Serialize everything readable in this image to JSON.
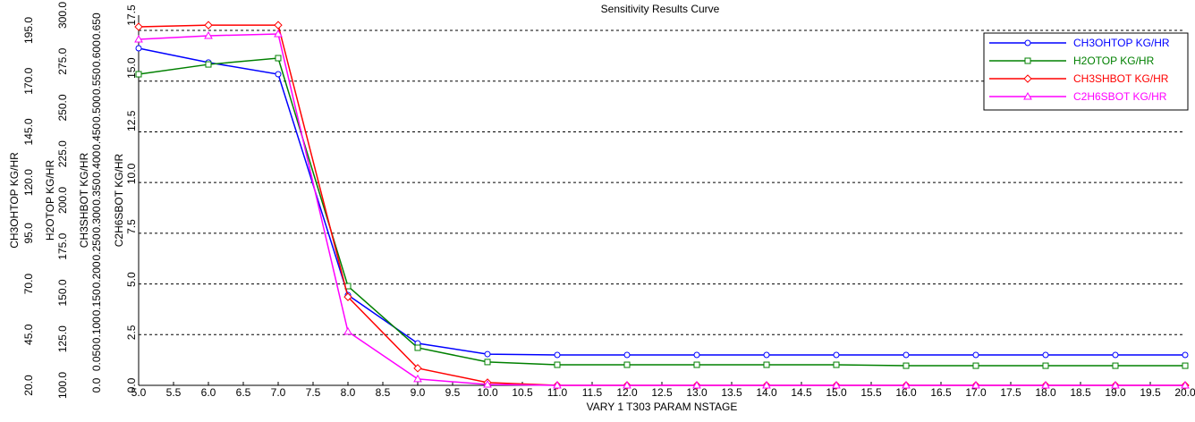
{
  "chart_data": {
    "type": "line",
    "title": "Sensitivity Results Curve",
    "x_label": "VARY   1 T303 PARAM NSTAGE",
    "x": [
      5,
      6,
      7,
      8,
      9,
      10,
      11,
      12,
      13,
      14,
      15,
      16,
      17,
      18,
      19,
      20
    ],
    "xlim": [
      5,
      20
    ],
    "xticks": [
      {
        "value": 5,
        "label": "5.0"
      },
      {
        "value": 5.5,
        "label": "5.5"
      },
      {
        "value": 6,
        "label": "6.0"
      },
      {
        "value": 6.5,
        "label": "6.5"
      },
      {
        "value": 7,
        "label": "7.0"
      },
      {
        "value": 7.5,
        "label": "7.5"
      },
      {
        "value": 8,
        "label": "8.0"
      },
      {
        "value": 8.5,
        "label": "8.5"
      },
      {
        "value": 9,
        "label": "9.0"
      },
      {
        "value": 9.5,
        "label": "9.5"
      },
      {
        "value": 10,
        "label": "10.0"
      },
      {
        "value": 10.5,
        "label": "10.5"
      },
      {
        "value": 11,
        "label": "11.0"
      },
      {
        "value": 11.5,
        "label": "11.5"
      },
      {
        "value": 12,
        "label": "12.0"
      },
      {
        "value": 12.5,
        "label": "12.5"
      },
      {
        "value": 13,
        "label": "13.0"
      },
      {
        "value": 13.5,
        "label": "13.5"
      },
      {
        "value": 14,
        "label": "14.0"
      },
      {
        "value": 14.5,
        "label": "14.5"
      },
      {
        "value": 15,
        "label": "15.0"
      },
      {
        "value": 15.5,
        "label": "15.5"
      },
      {
        "value": 16,
        "label": "16.0"
      },
      {
        "value": 16.5,
        "label": "16.5"
      },
      {
        "value": 17,
        "label": "17.0"
      },
      {
        "value": 17.5,
        "label": "17.5"
      },
      {
        "value": 18,
        "label": "18.0"
      },
      {
        "value": 18.5,
        "label": "18.5"
      },
      {
        "value": 19,
        "label": "19.0"
      },
      {
        "value": 19.5,
        "label": "19.5"
      },
      {
        "value": 20,
        "label": "20.0"
      }
    ],
    "grid": true,
    "grid_axis": 0,
    "legend": "upper right",
    "y_axes": [
      {
        "label": "CH3OHTOP KG/HR",
        "ylim": [
          20,
          202.5
        ],
        "yticks": [
          {
            "value": 20,
            "label": "20.0"
          },
          {
            "value": 45,
            "label": "45.0"
          },
          {
            "value": 70,
            "label": "70.0"
          },
          {
            "value": 95,
            "label": "95.0"
          },
          {
            "value": 120,
            "label": "120.0"
          },
          {
            "value": 145,
            "label": "145.0"
          },
          {
            "value": 170,
            "label": "170.0"
          },
          {
            "value": 195,
            "label": "195.0"
          }
        ]
      },
      {
        "label": "H2OTOP KG/HR",
        "ylim": [
          100,
          300
        ],
        "yticks": [
          {
            "value": 100,
            "label": "100.0"
          },
          {
            "value": 125,
            "label": "125.0"
          },
          {
            "value": 150,
            "label": "150.0"
          },
          {
            "value": 175,
            "label": "175.0"
          },
          {
            "value": 200,
            "label": "200.0"
          },
          {
            "value": 225,
            "label": "225.0"
          },
          {
            "value": 250,
            "label": "250.0"
          },
          {
            "value": 275,
            "label": "275.0"
          },
          {
            "value": 300,
            "label": "300.0"
          }
        ]
      },
      {
        "label": "CH3SHBOT KG/HR",
        "ylim": [
          0,
          0.67
        ],
        "yticks": [
          {
            "value": 0,
            "label": "0.0"
          },
          {
            "value": 0.05,
            "label": "0.050"
          },
          {
            "value": 0.1,
            "label": "0.100"
          },
          {
            "value": 0.15,
            "label": "0.150"
          },
          {
            "value": 0.2,
            "label": "0.200"
          },
          {
            "value": 0.25,
            "label": "0.250"
          },
          {
            "value": 0.3,
            "label": "0.300"
          },
          {
            "value": 0.35,
            "label": "0.350"
          },
          {
            "value": 0.4,
            "label": "0.400"
          },
          {
            "value": 0.45,
            "label": "0.450"
          },
          {
            "value": 0.5,
            "label": "0.500"
          },
          {
            "value": 0.55,
            "label": "0.550"
          },
          {
            "value": 0.6,
            "label": "0.600"
          },
          {
            "value": 0.65,
            "label": "0.650"
          }
        ]
      },
      {
        "label": "C2H6SBOT KG/HR",
        "ylim": [
          0,
          17.5
        ],
        "yticks": [
          {
            "value": 0,
            "label": "0.0"
          },
          2.5,
          {
            "value": 5,
            "label": "5.0"
          },
          7.5,
          {
            "value": 10,
            "label": "10.0"
          },
          12.5,
          {
            "value": 15,
            "label": "15.0"
          },
          17.5
        ]
      }
    ],
    "series": [
      {
        "name": "CH3OHTOP KG/HR",
        "color": "#0000ff",
        "marker": "circle",
        "axis": 0,
        "values": [
          186.2,
          179.2,
          173.4,
          64.5,
          40.7,
          35.4,
          35,
          35,
          35,
          35,
          35,
          35,
          35,
          35,
          35,
          35
        ]
      },
      {
        "name": "H2OTOP KG/HR",
        "color": "#008000",
        "marker": "square",
        "axis": 1,
        "values": [
          268.1,
          273.4,
          276.8,
          153.6,
          120.3,
          112.6,
          111.1,
          111.1,
          111.1,
          111.1,
          111.1,
          110.6,
          110.6,
          110.6,
          110.6,
          110.6
        ]
      },
      {
        "name": "CH3SHBOT KG/HR",
        "color": "#ff0000",
        "marker": "diamond",
        "axis": 2,
        "values": [
          0.649,
          0.652,
          0.652,
          0.16,
          0.031,
          0.005,
          0,
          0,
          0,
          0,
          0,
          0,
          0,
          0,
          0,
          0
        ]
      },
      {
        "name": "C2H6SBOT KG/HR",
        "color": "#ff00ff",
        "marker": "triangle",
        "axis": 3,
        "values": [
          16.36,
          16.53,
          16.61,
          2.54,
          0.3,
          0.04,
          0,
          0,
          0,
          0,
          0,
          0,
          0,
          0,
          0,
          0
        ]
      }
    ]
  }
}
